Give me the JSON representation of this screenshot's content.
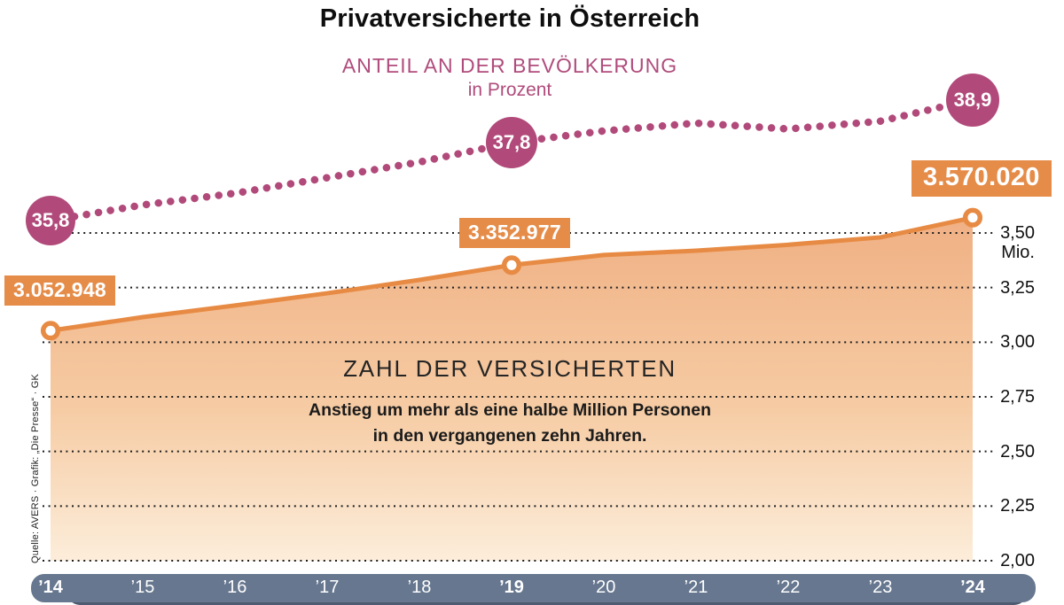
{
  "title": "Privatversicherte in Österreich",
  "subtitle": {
    "line1": "ANTEIL AN DER BEVÖLKERUNG",
    "line2": "in Prozent"
  },
  "center": {
    "heading": "ZAHL DER VERSICHERTEN",
    "note1": "Anstieg um mehr als eine halbe Million Personen",
    "note2": "in den vergangenen zehn Jahren."
  },
  "source": "Quelle: AVERS · Grafik: „Die Presse“ · GK",
  "y_axis": {
    "unit": "Mio.",
    "ticks": [
      "3,50",
      "3,25",
      "3,00",
      "2,75",
      "2,50",
      "2,25",
      "2,00"
    ],
    "tick_values": [
      3.5,
      3.25,
      3.0,
      2.75,
      2.5,
      2.25,
      2.0
    ]
  },
  "x_axis": {
    "years": [
      "’14",
      "’15",
      "’16",
      "’17",
      "’18",
      "’19",
      "’20",
      "’21",
      "’22",
      "’23",
      "’24"
    ],
    "bold_years": [
      "’14",
      "’19",
      "’24"
    ]
  },
  "chart_data": {
    "type": "line",
    "x_years": [
      2014,
      2015,
      2016,
      2017,
      2018,
      2019,
      2020,
      2021,
      2022,
      2023,
      2024
    ],
    "grid": "dotted-horizontal",
    "ylim_right_mio": [
      2.0,
      3.5
    ],
    "series": [
      {
        "name": "Anteil an der Bevölkerung",
        "unit": "Prozent",
        "style": "dotted-line",
        "color": "#b14a7a",
        "values_pct": [
          35.8,
          36.2,
          36.5,
          36.9,
          37.3,
          37.8,
          38.1,
          38.3,
          38.15,
          38.35,
          38.9
        ],
        "labeled_points": [
          {
            "year": 2014,
            "label": "35,8",
            "value": 35.8
          },
          {
            "year": 2019,
            "label": "37,8",
            "value": 37.8
          },
          {
            "year": 2024,
            "label": "38,9",
            "value": 38.9
          }
        ]
      },
      {
        "name": "Zahl der Versicherten",
        "unit": "Mio.",
        "style": "area-line",
        "color": "#e78b44",
        "values_mio": [
          3.052948,
          3.115,
          3.168,
          3.224,
          3.285,
          3.352977,
          3.399,
          3.419,
          3.446,
          3.48,
          3.57002
        ],
        "labeled_points": [
          {
            "year": 2014,
            "label": "3.052.948",
            "value": 3052948
          },
          {
            "year": 2019,
            "label": "3.352.977",
            "value": 3352977
          },
          {
            "year": 2024,
            "label": "3.570.020",
            "value": 3570020
          }
        ]
      }
    ]
  },
  "colors": {
    "magenta": "#b14a7a",
    "orange_line": "#e78b44",
    "badge_orange": "#e58c49",
    "area_top": "#f0b084",
    "area_mid": "#f6cba3",
    "area_bottom": "#fcedda",
    "grid": "#1d1d1d",
    "axis_bar": "#66778f",
    "axis_bar_shadow": "#4e5b70"
  }
}
